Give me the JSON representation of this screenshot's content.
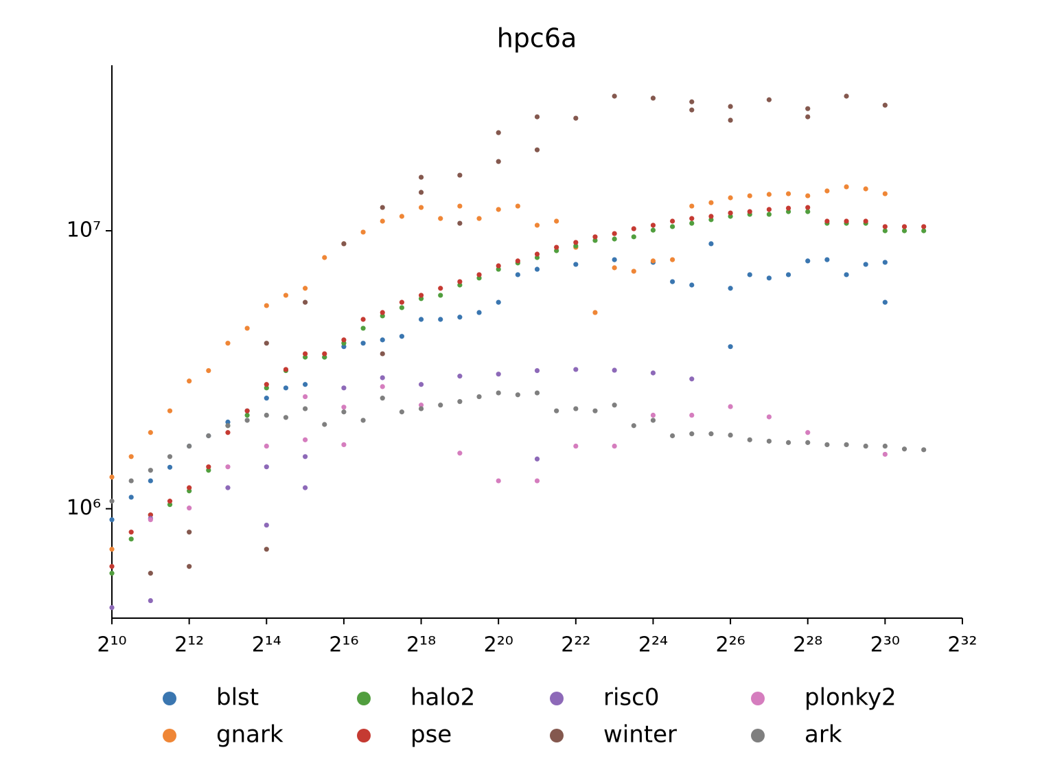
{
  "chart_data": {
    "type": "scatter",
    "title": "hpc6a",
    "xscale": "log2",
    "yscale": "log",
    "xlim": [
      1024,
      4294967296
    ],
    "ylim": [
      404000,
      39400000
    ],
    "xticks": [
      {
        "value": 1024,
        "label": "2¹⁰"
      },
      {
        "value": 4096,
        "label": "2¹²"
      },
      {
        "value": 16384,
        "label": "2¹⁴"
      },
      {
        "value": 65536,
        "label": "2¹⁶"
      },
      {
        "value": 262144,
        "label": "2¹⁸"
      },
      {
        "value": 1048576,
        "label": "2²⁰"
      },
      {
        "value": 4194304,
        "label": "2²²"
      },
      {
        "value": 16777216,
        "label": "2²⁴"
      },
      {
        "value": 67108864,
        "label": "2²⁶"
      },
      {
        "value": 268435456,
        "label": "2²⁸"
      },
      {
        "value": 1073741824,
        "label": "2³⁰"
      },
      {
        "value": 4294967296,
        "label": "2³²"
      }
    ],
    "yticks": [
      {
        "value": 1000000,
        "label": "10⁶"
      },
      {
        "value": 10000000,
        "label": "10⁷"
      }
    ],
    "grid": false,
    "legend": "bottom",
    "series": [
      {
        "name": "blst",
        "color": "#3a76b0",
        "x": [
          1024,
          1448,
          2048,
          2896,
          4096,
          5793,
          8192,
          11585,
          16384,
          23170,
          32768,
          46341,
          65536,
          92682,
          131072,
          185364,
          262144,
          370728,
          524288,
          741455,
          1048576,
          1482910,
          2097152,
          4194304,
          8388608,
          16777216,
          23726566,
          33554432,
          47453133,
          67108864,
          67108864,
          94906266,
          134217728,
          189812531,
          268435456,
          379625062,
          536870912,
          759250125,
          1073741824,
          1073741824
        ],
        "values": [
          913000,
          1100000,
          1260000,
          1410000,
          1680000,
          1830000,
          2050000,
          2250000,
          2500000,
          2720000,
          2800000,
          3510000,
          3830000,
          3940000,
          4050000,
          4170000,
          4800000,
          4800000,
          4890000,
          5080000,
          5530000,
          6950000,
          7270000,
          7570000,
          7870000,
          7700000,
          6560000,
          6380000,
          8980000,
          6210000,
          3830000,
          6950000,
          6760000,
          6950000,
          7790000,
          7870000,
          6950000,
          7570000,
          7700000,
          5530000
        ]
      },
      {
        "name": "gnark",
        "color": "#ef8636",
        "x": [
          1024,
          1024,
          1448,
          2048,
          2896,
          4096,
          5793,
          8192,
          11585,
          16384,
          23170,
          32768,
          46341,
          65536,
          92682,
          131072,
          185364,
          262144,
          370728,
          524288,
          741455,
          1048576,
          1482910,
          2097152,
          2965821,
          4194304,
          5931642,
          8388608,
          11863283,
          16777216,
          23726566,
          33554432,
          47453133,
          67108864,
          94906266,
          134217728,
          189812531,
          268435456,
          379625062,
          536870912,
          759250125,
          1073741824
        ],
        "values": [
          1300000,
          715000,
          1540000,
          1880000,
          2250000,
          2880000,
          3140000,
          3940000,
          4460000,
          5380000,
          5860000,
          6210000,
          8010000,
          8980000,
          9890000,
          10830000,
          11270000,
          12130000,
          11070000,
          12270000,
          11070000,
          11930000,
          12270000,
          10470000,
          10830000,
          8720000,
          5080000,
          7360000,
          7150000,
          7790000,
          7870000,
          12270000,
          12620000,
          13140000,
          13360000,
          13520000,
          13590000,
          13360000,
          13910000,
          14390000,
          14150000,
          13590000
        ]
      },
      {
        "name": "halo2",
        "color": "#519e3e",
        "x": [
          1024,
          1448,
          2048,
          2896,
          4096,
          5793,
          8192,
          11585,
          16384,
          23170,
          32768,
          46341,
          65536,
          92682,
          131072,
          185364,
          262144,
          370728,
          524288,
          741455,
          1048576,
          1482910,
          2097152,
          2965821,
          4194304,
          5931642,
          8388608,
          11863283,
          16777216,
          23726566,
          33554432,
          47453133,
          67108864,
          94906266,
          134217728,
          189812531,
          268435456,
          379625062,
          536870912,
          759250125,
          1073741824,
          1518500250,
          2147483648
        ],
        "values": [
          586000,
          778000,
          950000,
          1035000,
          1159000,
          1375000,
          1990000,
          2170000,
          2720000,
          3140000,
          3510000,
          3510000,
          3940000,
          4460000,
          4940000,
          5290000,
          5700000,
          5860000,
          6380000,
          6760000,
          7270000,
          7660000,
          8010000,
          8480000,
          8820000,
          9230000,
          9340000,
          9510000,
          10050000,
          10350000,
          10640000,
          10960000,
          11270000,
          11460000,
          11460000,
          11720000,
          11720000,
          10640000,
          10640000,
          10640000,
          10000000,
          10000000,
          10000000
        ]
      },
      {
        "name": "pse",
        "color": "#c53a32",
        "x": [
          1024,
          1448,
          2048,
          2896,
          4096,
          5793,
          8192,
          11585,
          16384,
          23170,
          32768,
          46341,
          65536,
          92682,
          131072,
          185364,
          262144,
          370728,
          524288,
          741455,
          1048576,
          1482910,
          2097152,
          2965821,
          4194304,
          5931642,
          8388608,
          11863283,
          16777216,
          23726566,
          33554432,
          47453133,
          67108864,
          94906266,
          134217728,
          189812531,
          268435456,
          379625062,
          536870912,
          759250125,
          1073741824,
          1518500250,
          2147483648
        ],
        "values": [
          620000,
          824000,
          950000,
          1065000,
          1190000,
          1415000,
          1880000,
          2250000,
          2800000,
          3170000,
          3610000,
          3610000,
          4050000,
          4800000,
          5080000,
          5530000,
          5860000,
          6210000,
          6560000,
          6950000,
          7480000,
          7790000,
          8240000,
          8720000,
          9080000,
          9510000,
          9770000,
          10170000,
          10470000,
          10830000,
          11070000,
          11270000,
          11590000,
          11720000,
          11930000,
          12060000,
          12130000,
          10830000,
          10830000,
          10830000,
          10350000,
          10350000,
          10350000
        ]
      },
      {
        "name": "risc0",
        "color": "#8d69b8",
        "x": [
          1024,
          2048,
          2048,
          8192,
          16384,
          16384,
          32768,
          32768,
          65536,
          131072,
          262144,
          524288,
          1048576,
          2097152,
          2097152,
          4194304,
          8388608,
          16777216,
          33554432
        ],
        "values": [
          441000,
          467000,
          923000,
          1190000,
          873000,
          1415000,
          1190000,
          1540000,
          2720000,
          2960000,
          2800000,
          3000000,
          3050000,
          3140000,
          1510000,
          3170000,
          3150000,
          3080000,
          2930000
        ]
      },
      {
        "name": "winter",
        "color": "#84584e",
        "x": [
          2048,
          4096,
          4096,
          16384,
          16384,
          32768,
          65536,
          131072,
          131072,
          262144,
          262144,
          524288,
          524288,
          1048576,
          1048576,
          2097152,
          2097152,
          4194304,
          8388608,
          16777216,
          33554432,
          33554432,
          67108864,
          67108864,
          134217728,
          268435456,
          268435456,
          536870912,
          1073741824
        ],
        "values": [
          586000,
          620000,
          824000,
          715000,
          3940000,
          5530000,
          8980000,
          3610000,
          12130000,
          13750000,
          15580000,
          10640000,
          15850000,
          17750000,
          22540000,
          19550000,
          25700000,
          25410000,
          30500000,
          30000000,
          27200000,
          29100000,
          24990000,
          28000000,
          29600000,
          25700000,
          27500000,
          30500000,
          28300000
        ]
      },
      {
        "name": "plonky2",
        "color": "#d57dbe",
        "x": [
          2048,
          4096,
          8192,
          16384,
          32768,
          32768,
          65536,
          65536,
          131072,
          262144,
          524288,
          1048576,
          2097152,
          4194304,
          8388608,
          16777216,
          33554432,
          67108864,
          134217728,
          268435456,
          1073741824
        ],
        "values": [
          913000,
          1006000,
          1415000,
          1680000,
          2530000,
          1770000,
          2320000,
          1700000,
          2750000,
          2360000,
          1585000,
          1260000,
          1260000,
          1680000,
          1680000,
          2170000,
          2170000,
          2330000,
          2140000,
          1880000,
          1570000
        ]
      },
      {
        "name": "ark",
        "color": "#7f7f7f",
        "x": [
          1024,
          1448,
          2048,
          2896,
          4096,
          5793,
          8192,
          11585,
          16384,
          23170,
          32768,
          46341,
          65536,
          92682,
          131072,
          185364,
          262144,
          370728,
          524288,
          741455,
          1048576,
          1482910,
          2097152,
          2965821,
          4194304,
          5931642,
          8388608,
          11863283,
          16777216,
          23726566,
          33554432,
          47453133,
          67108864,
          94906266,
          134217728,
          189812531,
          268435456,
          379625062,
          536870912,
          759250125,
          1073741824,
          1518500250,
          2147483648
        ],
        "values": [
          1065000,
          1260000,
          1375000,
          1540000,
          1680000,
          1830000,
          1990000,
          2080000,
          2170000,
          2130000,
          2290000,
          2010000,
          2230000,
          2080000,
          2500000,
          2230000,
          2290000,
          2360000,
          2430000,
          2530000,
          2610000,
          2570000,
          2610000,
          2250000,
          2290000,
          2250000,
          2360000,
          1990000,
          2080000,
          1830000,
          1860000,
          1860000,
          1840000,
          1770000,
          1750000,
          1730000,
          1730000,
          1700000,
          1700000,
          1680000,
          1680000,
          1640000,
          1630000
        ]
      }
    ]
  }
}
